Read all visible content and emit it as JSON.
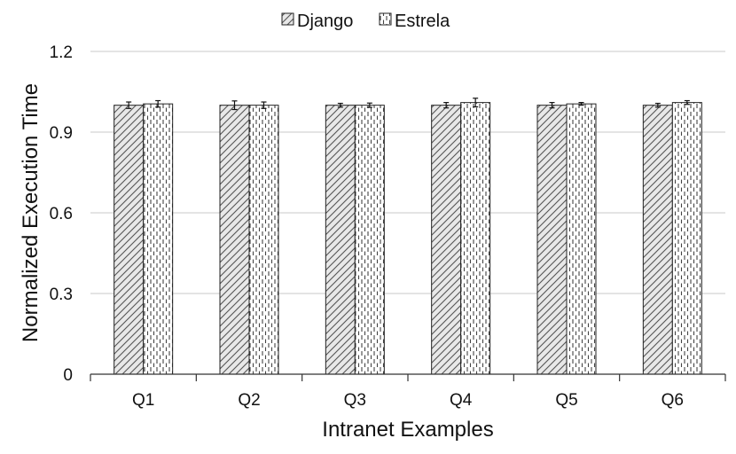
{
  "chart_data": {
    "type": "bar",
    "title": "",
    "xlabel": "Intranet Examples",
    "ylabel": "Normalized Execution Time",
    "categories": [
      "Q1",
      "Q2",
      "Q3",
      "Q4",
      "Q5",
      "Q6"
    ],
    "yticks": [
      "0",
      "0.3",
      "0.6",
      "0.9",
      "1.2"
    ],
    "ylim": [
      0,
      1.2
    ],
    "grid": true,
    "legend_position": "top-center",
    "series": [
      {
        "name": "Django",
        "pattern": "diagonal-hatch",
        "color": "#e6e6e6",
        "values": [
          1.0,
          1.0,
          1.0,
          1.0,
          1.0,
          1.0
        ],
        "errors": [
          0.012,
          0.016,
          0.007,
          0.01,
          0.01,
          0.007
        ]
      },
      {
        "name": "Estrela",
        "pattern": "dashed-vertical",
        "color": "#ffffff",
        "values": [
          1.005,
          1.0,
          1.0,
          1.01,
          1.005,
          1.01
        ],
        "errors": [
          0.012,
          0.012,
          0.008,
          0.016,
          0.005,
          0.007
        ]
      }
    ]
  }
}
